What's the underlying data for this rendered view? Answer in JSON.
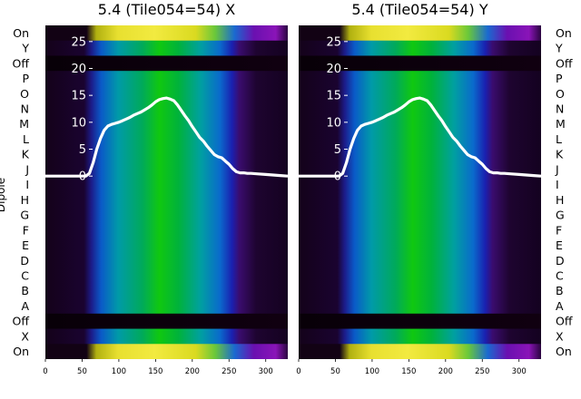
{
  "chart_data": [
    {
      "type": "heatmap",
      "title": "5.4 (Tile054=54) X",
      "ylabel": "Dipole",
      "row_labels": [
        "On",
        "X",
        "Off",
        "A",
        "B",
        "C",
        "D",
        "E",
        "F",
        "G",
        "H",
        "I",
        "J",
        "K",
        "L",
        "M",
        "N",
        "O",
        "P",
        "Off",
        "Y",
        "On"
      ],
      "x_ticks": [
        0,
        50,
        100,
        150,
        200,
        250,
        300
      ],
      "xlim": [
        0,
        330
      ],
      "overlay": {
        "type": "line",
        "color": "#ffffff",
        "y_ticks": [
          0,
          5,
          10,
          15,
          20,
          25
        ],
        "ylim": [
          -34,
          28
        ],
        "x": [
          0,
          20,
          40,
          55,
          60,
          65,
          70,
          75,
          80,
          85,
          90,
          95,
          100,
          105,
          110,
          115,
          120,
          125,
          130,
          135,
          140,
          145,
          150,
          155,
          160,
          165,
          170,
          175,
          180,
          185,
          190,
          195,
          200,
          205,
          210,
          215,
          220,
          225,
          230,
          235,
          240,
          245,
          250,
          255,
          260,
          265,
          270,
          275,
          280,
          290,
          300,
          310,
          320,
          330
        ],
        "y": [
          0,
          0,
          0,
          0,
          0.5,
          2.5,
          5,
          7,
          8.5,
          9.3,
          9.6,
          9.8,
          10,
          10.3,
          10.6,
          10.9,
          11.3,
          11.6,
          11.9,
          12.3,
          12.7,
          13.2,
          13.8,
          14.2,
          14.4,
          14.5,
          14.3,
          14,
          13.2,
          12.2,
          11.2,
          10.3,
          9.2,
          8.2,
          7.2,
          6.5,
          5.6,
          4.8,
          4,
          3.6,
          3.4,
          2.8,
          2.2,
          1.4,
          0.8,
          0.6,
          0.6,
          0.5,
          0.5,
          0.4,
          0.3,
          0.2,
          0.1,
          0
        ]
      }
    },
    {
      "type": "heatmap",
      "title": "5.4 (Tile054=54) Y",
      "row_labels": [
        "On",
        "X",
        "Off",
        "A",
        "B",
        "C",
        "D",
        "E",
        "F",
        "G",
        "H",
        "I",
        "J",
        "K",
        "L",
        "M",
        "N",
        "O",
        "P",
        "Off",
        "Y",
        "On"
      ],
      "x_ticks": [
        0,
        50,
        100,
        150,
        200,
        250,
        300
      ],
      "xlim": [
        0,
        330
      ],
      "overlay": {
        "type": "line",
        "color": "#ffffff",
        "y_ticks": [
          0,
          5,
          10,
          15,
          20,
          25
        ],
        "ylim": [
          -34,
          28
        ],
        "x": [
          0,
          20,
          40,
          55,
          60,
          65,
          70,
          75,
          80,
          85,
          90,
          95,
          100,
          105,
          110,
          115,
          120,
          125,
          130,
          135,
          140,
          145,
          150,
          155,
          160,
          165,
          170,
          175,
          180,
          185,
          190,
          195,
          200,
          205,
          210,
          215,
          220,
          225,
          230,
          235,
          240,
          245,
          250,
          255,
          260,
          265,
          270,
          275,
          280,
          290,
          300,
          310,
          320,
          330
        ],
        "y": [
          0,
          0,
          0,
          0,
          0.5,
          2.5,
          5,
          7,
          8.5,
          9.3,
          9.6,
          9.8,
          10,
          10.3,
          10.6,
          10.9,
          11.3,
          11.6,
          11.9,
          12.3,
          12.7,
          13.2,
          13.8,
          14.2,
          14.4,
          14.5,
          14.3,
          14,
          13.2,
          12.2,
          11.2,
          10.3,
          9.2,
          8.2,
          7.2,
          6.5,
          5.6,
          4.8,
          4,
          3.6,
          3.4,
          2.8,
          2.2,
          1.4,
          0.8,
          0.6,
          0.6,
          0.5,
          0.5,
          0.4,
          0.3,
          0.2,
          0.1,
          0
        ]
      }
    }
  ]
}
